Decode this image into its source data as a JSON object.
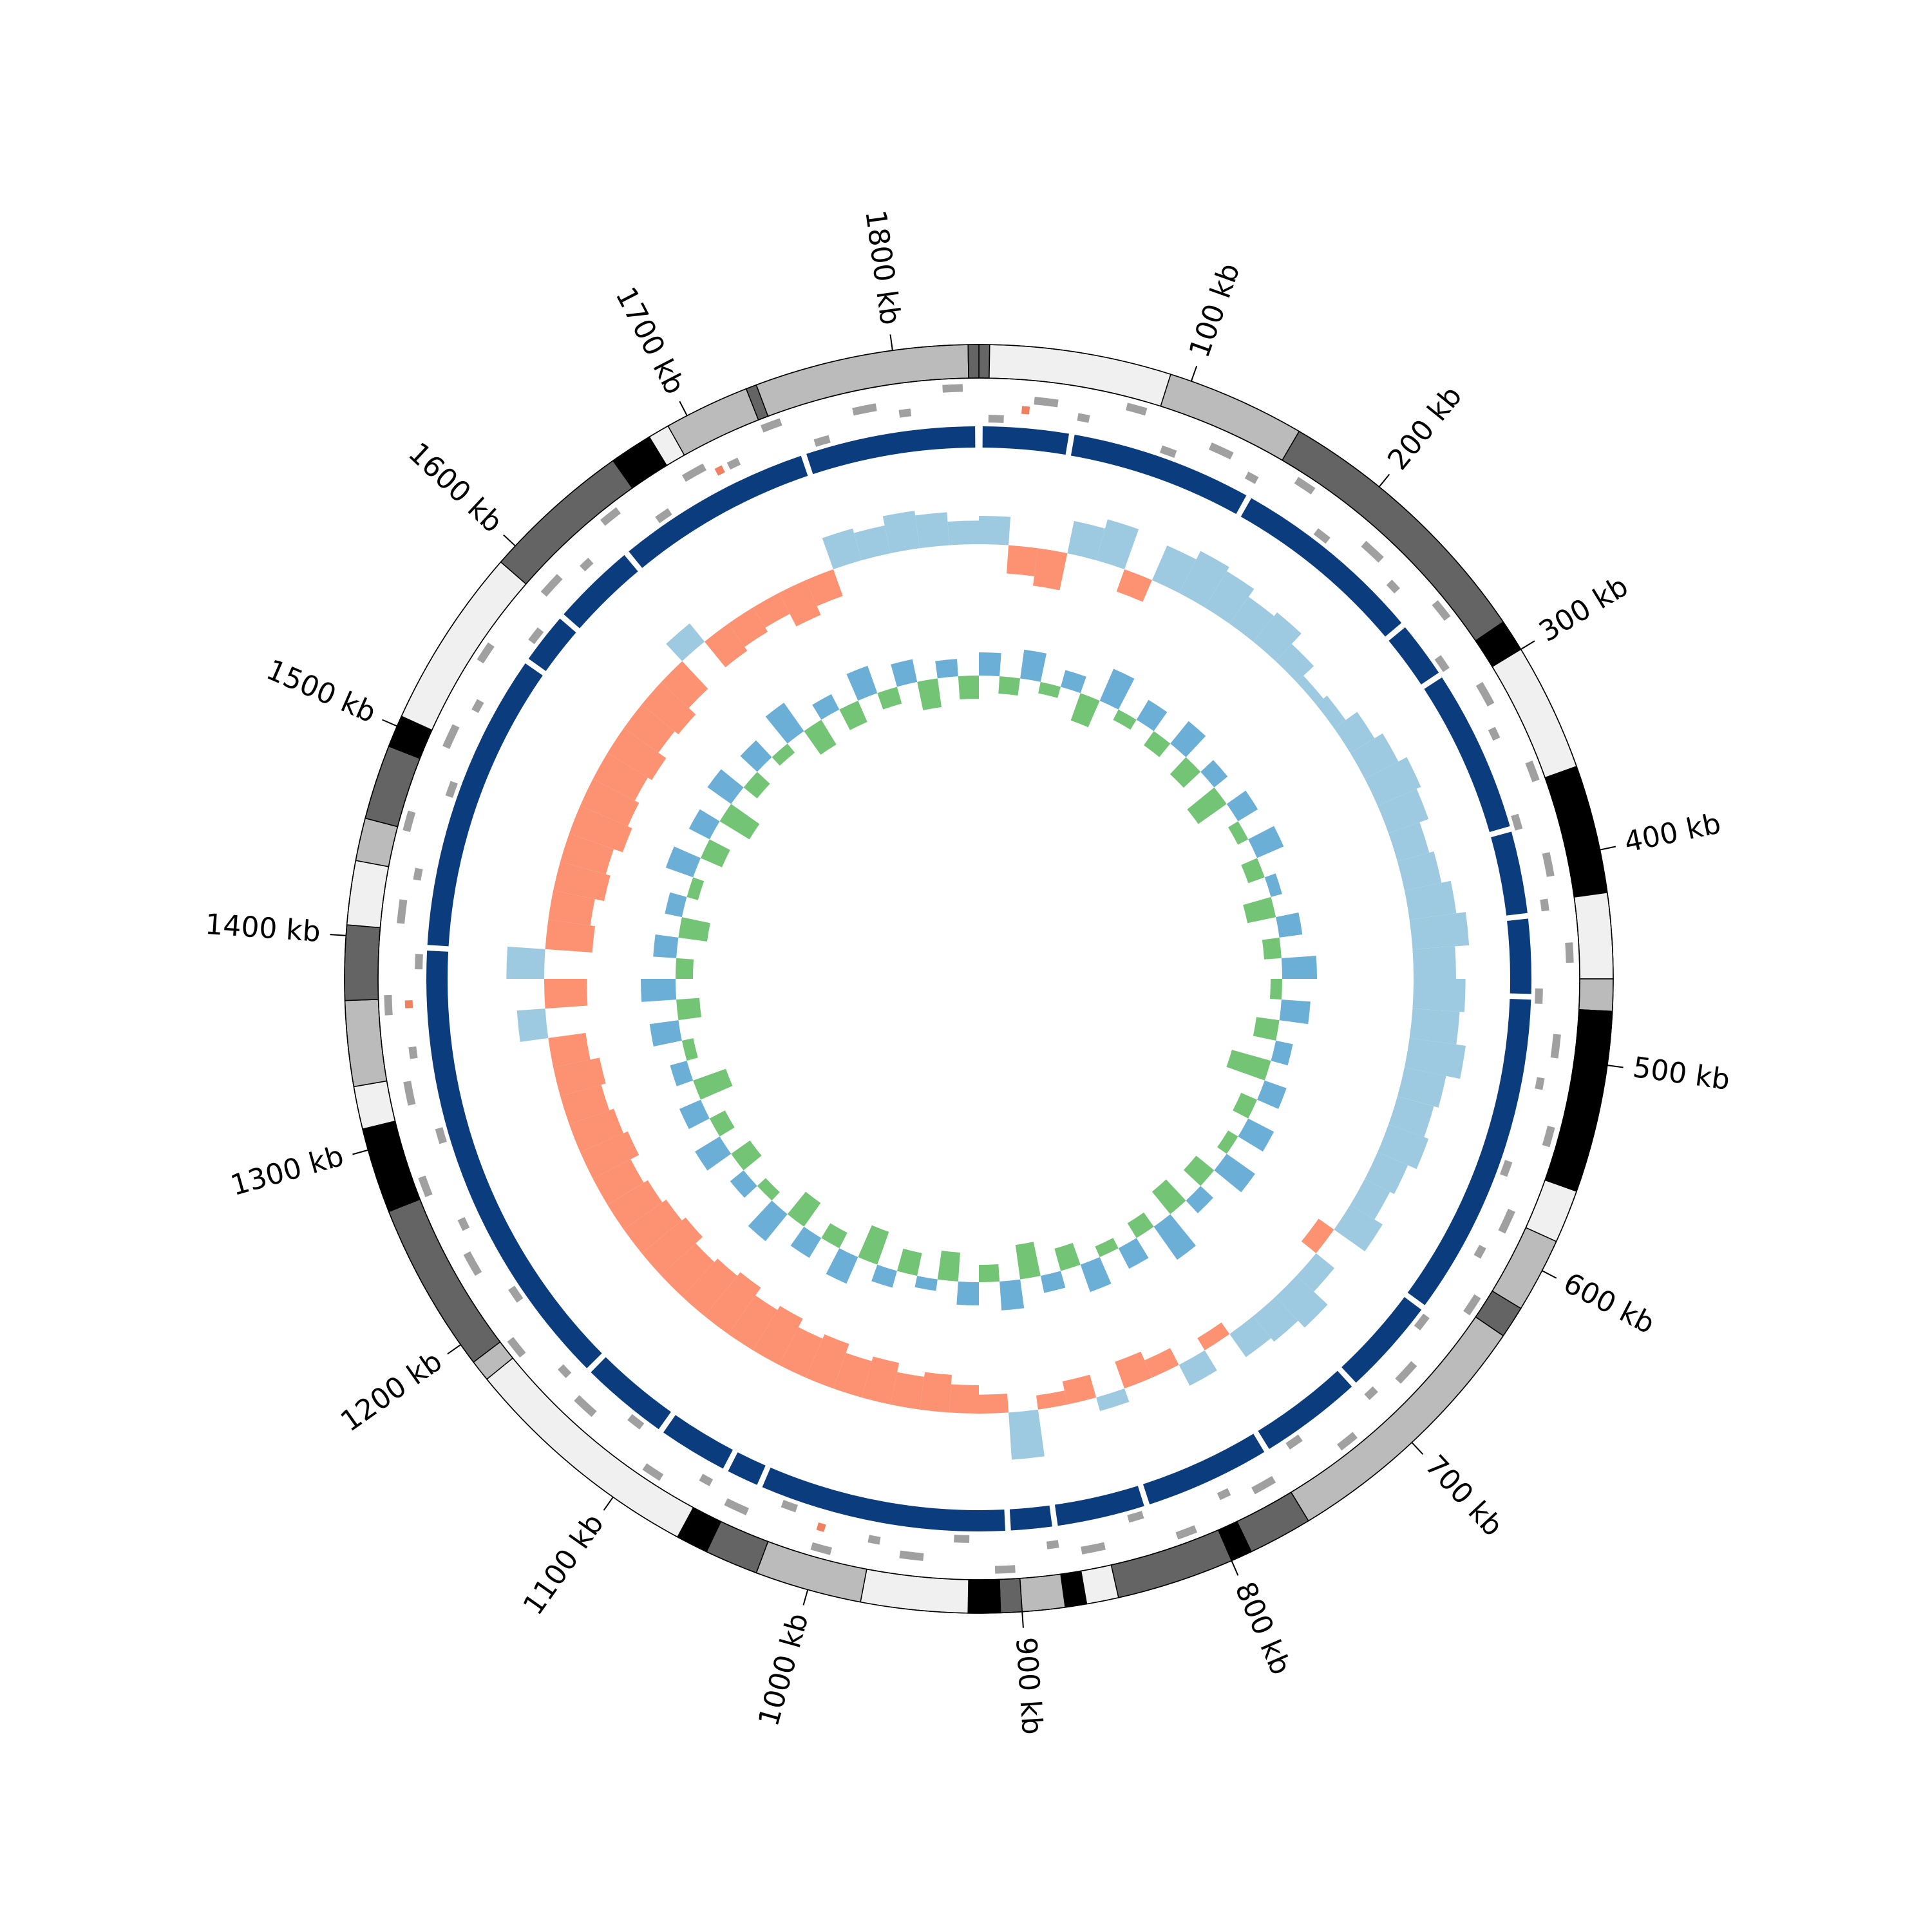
{
  "chart_data": {
    "type": "circos",
    "xlim": [
      0,
      1840
    ],
    "xticks": [
      {
        "value": 100,
        "label": "100 kb"
      },
      {
        "value": 200,
        "label": "200 kb"
      },
      {
        "value": 300,
        "label": "300 kb"
      },
      {
        "value": 400,
        "label": "400 kb"
      },
      {
        "value": 500,
        "label": "500 kb"
      },
      {
        "value": 600,
        "label": "600 kb"
      },
      {
        "value": 700,
        "label": "700 kb"
      },
      {
        "value": 800,
        "label": "800 kb"
      },
      {
        "value": 900,
        "label": "900 kb"
      },
      {
        "value": 1000,
        "label": "1000 kb"
      },
      {
        "value": 1100,
        "label": "1100 kb"
      },
      {
        "value": 1200,
        "label": "1200 kb"
      },
      {
        "value": 1300,
        "label": "1300 kb"
      },
      {
        "value": 1400,
        "label": "1400 kb"
      },
      {
        "value": 1500,
        "label": "1500 kb"
      },
      {
        "value": 1600,
        "label": "1600 kb"
      },
      {
        "value": 1700,
        "label": "1700 kb"
      },
      {
        "value": 1800,
        "label": "1800 kb"
      }
    ],
    "bands": [
      {
        "start": 0,
        "end": 5,
        "color": "#666666"
      },
      {
        "start": 5,
        "end": 90,
        "color": "#f0f0f0"
      },
      {
        "start": 90,
        "end": 155,
        "color": "#bbbbbb"
      },
      {
        "start": 155,
        "end": 285,
        "color": "#646464"
      },
      {
        "start": 285,
        "end": 300,
        "color": "#000000"
      },
      {
        "start": 300,
        "end": 360,
        "color": "#f0f0f0"
      },
      {
        "start": 360,
        "end": 420,
        "color": "#000000"
      },
      {
        "start": 420,
        "end": 460,
        "color": "#f0f0f0"
      },
      {
        "start": 460,
        "end": 475,
        "color": "#bbbbbb"
      },
      {
        "start": 475,
        "end": 490,
        "color": "#000000"
      },
      {
        "start": 490,
        "end": 560,
        "color": "#000000"
      },
      {
        "start": 560,
        "end": 585,
        "color": "#f0f0f0"
      },
      {
        "start": 585,
        "end": 620,
        "color": "#bbbbbb"
      },
      {
        "start": 620,
        "end": 635,
        "color": "#646464"
      },
      {
        "start": 635,
        "end": 760,
        "color": "#bbbbbb"
      },
      {
        "start": 760,
        "end": 790,
        "color": "#646464"
      },
      {
        "start": 790,
        "end": 800,
        "color": "#000000"
      },
      {
        "start": 800,
        "end": 855,
        "color": "#646464"
      },
      {
        "start": 855,
        "end": 870,
        "color": "#f0f0f0"
      },
      {
        "start": 870,
        "end": 880,
        "color": "#000000"
      },
      {
        "start": 880,
        "end": 900,
        "color": "#bbbbbb"
      },
      {
        "start": 900,
        "end": 910,
        "color": "#646464"
      },
      {
        "start": 910,
        "end": 925,
        "color": "#000000"
      },
      {
        "start": 925,
        "end": 975,
        "color": "#f0f0f0"
      },
      {
        "start": 975,
        "end": 1025,
        "color": "#bbbbbb"
      },
      {
        "start": 1025,
        "end": 1050,
        "color": "#646464"
      },
      {
        "start": 1050,
        "end": 1065,
        "color": "#000000"
      },
      {
        "start": 1065,
        "end": 1180,
        "color": "#f0f0f0"
      },
      {
        "start": 1180,
        "end": 1190,
        "color": "#bbbbbb"
      },
      {
        "start": 1190,
        "end": 1270,
        "color": "#646464"
      },
      {
        "start": 1270,
        "end": 1310,
        "color": "#000000"
      },
      {
        "start": 1310,
        "end": 1330,
        "color": "#f0f0f0"
      },
      {
        "start": 1330,
        "end": 1370,
        "color": "#bbbbbb"
      },
      {
        "start": 1370,
        "end": 1405,
        "color": "#646464"
      },
      {
        "start": 1405,
        "end": 1435,
        "color": "#f0f0f0"
      },
      {
        "start": 1435,
        "end": 1455,
        "color": "#bbbbbb"
      },
      {
        "start": 1455,
        "end": 1490,
        "color": "#646464"
      },
      {
        "start": 1490,
        "end": 1505,
        "color": "#000000"
      },
      {
        "start": 1505,
        "end": 1590,
        "color": "#f0f0f0"
      },
      {
        "start": 1590,
        "end": 1660,
        "color": "#646464"
      },
      {
        "start": 1660,
        "end": 1680,
        "color": "#000000"
      },
      {
        "start": 1680,
        "end": 1690,
        "color": "#f0f0f0"
      },
      {
        "start": 1690,
        "end": 1730,
        "color": "#bbbbbb"
      },
      {
        "start": 1730,
        "end": 1735,
        "color": "#646464"
      },
      {
        "start": 1735,
        "end": 1835,
        "color": "#bbbbbb"
      },
      {
        "start": 1835,
        "end": 1840,
        "color": "#646464"
      }
    ],
    "blocks": {
      "color": "#0b3d7e",
      "start": [
        2,
        51,
        151,
        258,
        291,
        381,
        428,
        471,
        648,
        703,
        761,
        831,
        881,
        906,
        1041,
        1061,
        1101,
        1151,
        1398,
        1561,
        1591,
        1639,
        1747
      ],
      "end": [
        48,
        148,
        255,
        288,
        378,
        425,
        468,
        645,
        700,
        758,
        828,
        878,
        903,
        1038,
        1058,
        1098,
        1148,
        1395,
        1558,
        1588,
        1636,
        1744,
        1838
      ]
    },
    "features": {
      "color": "#a0a0a0",
      "start": [
        5,
        28,
        51,
        74,
        97,
        120,
        143,
        166,
        189,
        212,
        235,
        258,
        281,
        304,
        327,
        350,
        373,
        396,
        419,
        442,
        465,
        488,
        511,
        534,
        557,
        580,
        603,
        626,
        649,
        672,
        695,
        718,
        741,
        764,
        787,
        810,
        833,
        856,
        879,
        902,
        925,
        948,
        971,
        994,
        1017,
        1040,
        1063,
        1086,
        1109,
        1132,
        1155,
        1178,
        1201,
        1224,
        1247,
        1270,
        1293,
        1316,
        1339,
        1362,
        1385,
        1408,
        1431,
        1454,
        1477,
        1500,
        1523,
        1546,
        1569,
        1592,
        1615,
        1638,
        1661,
        1684,
        1707,
        1730,
        1753,
        1776,
        1799,
        1822
      ],
      "end": [
        13,
        40,
        57,
        84,
        105,
        132,
        149,
        176,
        197,
        224,
        241,
        268,
        289,
        316,
        333,
        360,
        381,
        408,
        425,
        452,
        473,
        500,
        517,
        544,
        565,
        592,
        609,
        636,
        657,
        684,
        701,
        728,
        749,
        776,
        793,
        820,
        841,
        868,
        885,
        912,
        933,
        960,
        977,
        1004,
        1025,
        1052,
        1069,
        1096,
        1117,
        1144,
        1161,
        1188,
        1209,
        1236,
        1253,
        1280,
        1301,
        1328,
        1345,
        1372,
        1393,
        1420,
        1437,
        1464,
        1485,
        1512,
        1529,
        1556,
        1577,
        1604,
        1621,
        1648,
        1669,
        1696,
        1713,
        1740,
        1761,
        1788,
        1805,
        1832
      ],
      "lane": [
        0,
        2,
        1,
        3,
        0,
        2,
        1,
        3,
        0,
        2,
        1,
        3,
        0,
        2,
        1,
        3,
        0,
        2,
        1,
        3,
        0,
        2,
        1,
        3,
        0,
        2,
        1,
        3,
        0,
        2,
        1,
        3,
        0,
        2,
        1,
        3,
        0,
        2,
        1,
        3,
        0,
        2,
        1,
        3,
        0,
        2,
        1,
        3,
        0,
        2,
        1,
        3,
        0,
        2,
        1,
        3,
        0,
        2,
        1,
        3,
        0,
        2,
        1,
        3,
        0,
        2,
        1,
        3,
        0,
        2,
        1,
        3,
        0,
        2,
        1,
        3,
        0,
        2,
        1,
        3
      ]
    },
    "rna": {
      "color": "#f08060",
      "start": [
        22,
        1000,
        1365,
        1700
      ],
      "end": [
        26,
        1004,
        1369,
        1704
      ]
    },
    "x": [
      0,
      20,
      40,
      60,
      80,
      100,
      120,
      140,
      160,
      180,
      200,
      220,
      240,
      260,
      280,
      300,
      320,
      340,
      360,
      380,
      400,
      420,
      440,
      460,
      480,
      500,
      520,
      540,
      560,
      580,
      600,
      620,
      640,
      660,
      680,
      700,
      720,
      740,
      760,
      780,
      800,
      820,
      840,
      860,
      880,
      900,
      920,
      940,
      960,
      980,
      1000,
      1020,
      1040,
      1060,
      1080,
      1100,
      1120,
      1140,
      1160,
      1180,
      1200,
      1220,
      1240,
      1260,
      1280,
      1300,
      1320,
      1340,
      1360,
      1380,
      1400,
      1420,
      1440,
      1460,
      1480,
      1500,
      1520,
      1540,
      1560,
      1580,
      1600,
      1620,
      1640,
      1660,
      1680,
      1700,
      1720,
      1740,
      1760,
      1780,
      1800,
      1820
    ],
    "skew": {
      "ylim": [
        -0.15,
        0.15
      ],
      "pos_color": "#9ecae1",
      "neg_color": "#fc9272",
      "values": [
        0.06,
        -0.06,
        -0.08,
        0.07,
        0.09,
        -0.05,
        0.08,
        0.1,
        0.09,
        0.07,
        0.08,
        0.05,
        0.02,
        0.03,
        0.06,
        0.08,
        0.1,
        0.09,
        0.07,
        0.08,
        0.1,
        0.12,
        0.09,
        0.11,
        0.1,
        0.12,
        0.09,
        0.08,
        0.09,
        0.07,
        0.06,
        0.08,
        -0.04,
        0.05,
        0.09,
        0.07,
        0.06,
        -0.03,
        0.05,
        -0.04,
        -0.06,
        0.03,
        -0.05,
        -0.03,
        0.1,
        -0.04,
        -0.06,
        -0.08,
        -0.07,
        -0.09,
        -0.08,
        -0.1,
        -0.09,
        -0.11,
        -0.1,
        -0.12,
        -0.11,
        -0.1,
        -0.12,
        -0.11,
        -0.1,
        -0.09,
        -0.11,
        -0.1,
        -0.09,
        -0.1,
        -0.08,
        0.06,
        -0.09,
        0.08,
        -0.1,
        -0.09,
        -0.11,
        -0.1,
        -0.12,
        -0.11,
        -0.1,
        -0.11,
        -0.09,
        -0.1,
        -0.08,
        0.05,
        -0.07,
        -0.06,
        -0.05,
        -0.08,
        -0.06,
        0.07,
        0.06,
        0.08,
        0.07,
        0.05
      ]
    },
    "gc": {
      "ylim": [
        -0.1,
        0.1
      ],
      "pos_color": "#6baed6",
      "neg_color": "#74c476",
      "values": [
        0.04,
        -0.03,
        0.05,
        -0.02,
        0.03,
        -0.05,
        0.06,
        -0.02,
        0.04,
        -0.03,
        0.05,
        -0.04,
        0.03,
        -0.06,
        0.04,
        -0.02,
        0.05,
        -0.03,
        0.02,
        -0.05,
        0.04,
        -0.03,
        0.06,
        -0.02,
        0.05,
        -0.04,
        0.03,
        -0.07,
        0.04,
        -0.03,
        0.05,
        -0.02,
        0.06,
        -0.04,
        0.03,
        -0.05,
        0.07,
        -0.03,
        0.04,
        -0.02,
        0.05,
        -0.04,
        0.03,
        -0.06,
        0.05,
        -0.03,
        0.04,
        -0.05,
        0.02,
        -0.04,
        0.03,
        -0.06,
        0.05,
        -0.03,
        0.04,
        -0.05,
        0.06,
        -0.02,
        0.03,
        -0.04,
        0.05,
        -0.03,
        0.04,
        -0.06,
        0.03,
        -0.02,
        0.05,
        -0.04,
        0.06,
        -0.03,
        0.04,
        -0.05,
        0.03,
        -0.02,
        0.05,
        -0.04,
        0.04,
        -0.06,
        0.05,
        -0.03,
        0.04,
        -0.02,
        0.06,
        -0.05,
        0.03,
        -0.04,
        0.05,
        -0.03,
        0.04,
        -0.05,
        0.03,
        -0.04
      ]
    }
  }
}
